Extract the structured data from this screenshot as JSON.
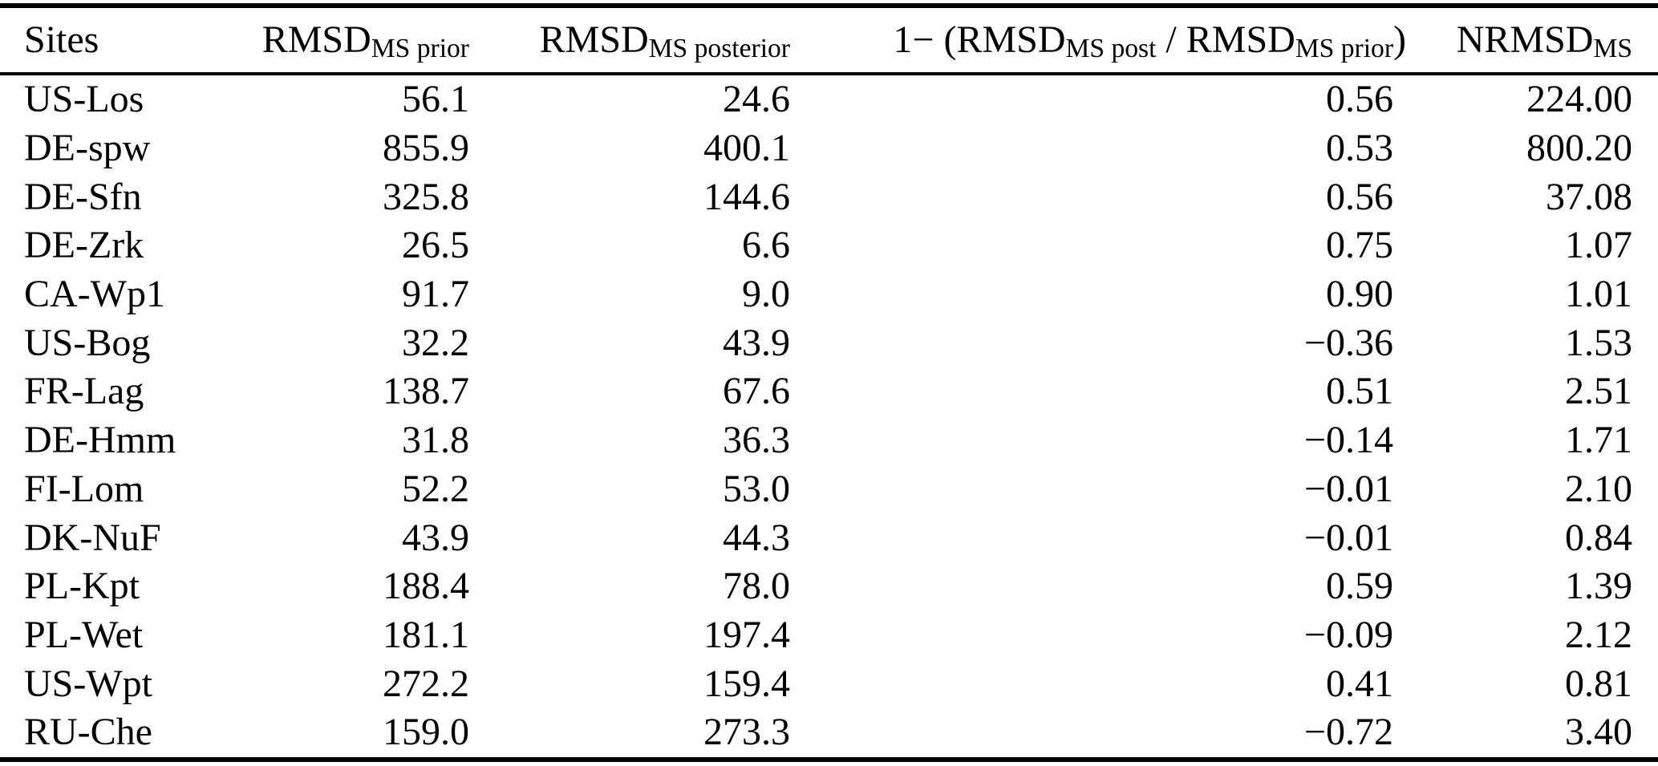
{
  "table": {
    "background_color": "#ffffff",
    "text_color": "#000000",
    "columns": [
      {
        "id": "sites",
        "segments": [
          {
            "text": "Sites"
          }
        ]
      },
      {
        "id": "rmsd_prior",
        "segments": [
          {
            "text": "RMSD"
          },
          {
            "sub": "MS prior"
          }
        ]
      },
      {
        "id": "rmsd_posterior",
        "segments": [
          {
            "text": "RMSD"
          },
          {
            "sub": "MS posterior"
          }
        ]
      },
      {
        "id": "improvement",
        "segments": [
          {
            "text": "1− (RMSD"
          },
          {
            "sub": "MS post"
          },
          {
            "text": " / RMSD"
          },
          {
            "sub": "MS prior"
          },
          {
            "text": ")"
          }
        ]
      },
      {
        "id": "nrmsd",
        "segments": [
          {
            "text": "NRMSD"
          },
          {
            "sub": "MS"
          }
        ]
      }
    ],
    "rows": [
      {
        "site": "US-Los",
        "rmsd_prior": "56.1",
        "rmsd_posterior": "24.6",
        "improvement": "0.56",
        "nrmsd": "224.00"
      },
      {
        "site": "DE-spw",
        "rmsd_prior": "855.9",
        "rmsd_posterior": "400.1",
        "improvement": "0.53",
        "nrmsd": "800.20"
      },
      {
        "site": "DE-Sfn",
        "rmsd_prior": "325.8",
        "rmsd_posterior": "144.6",
        "improvement": "0.56",
        "nrmsd": "37.08"
      },
      {
        "site": "DE-Zrk",
        "rmsd_prior": "26.5",
        "rmsd_posterior": "6.6",
        "improvement": "0.75",
        "nrmsd": "1.07"
      },
      {
        "site": "CA-Wp1",
        "rmsd_prior": "91.7",
        "rmsd_posterior": "9.0",
        "improvement": "0.90",
        "nrmsd": "1.01"
      },
      {
        "site": "US-Bog",
        "rmsd_prior": "32.2",
        "rmsd_posterior": "43.9",
        "improvement": "−0.36",
        "nrmsd": "1.53"
      },
      {
        "site": "FR-Lag",
        "rmsd_prior": "138.7",
        "rmsd_posterior": "67.6",
        "improvement": "0.51",
        "nrmsd": "2.51"
      },
      {
        "site": "DE-Hmm",
        "rmsd_prior": "31.8",
        "rmsd_posterior": "36.3",
        "improvement": "−0.14",
        "nrmsd": "1.71"
      },
      {
        "site": "FI-Lom",
        "rmsd_prior": "52.2",
        "rmsd_posterior": "53.0",
        "improvement": "−0.01",
        "nrmsd": "2.10"
      },
      {
        "site": "DK-NuF",
        "rmsd_prior": "43.9",
        "rmsd_posterior": "44.3",
        "improvement": "−0.01",
        "nrmsd": "0.84"
      },
      {
        "site": "PL-Kpt",
        "rmsd_prior": "188.4",
        "rmsd_posterior": "78.0",
        "improvement": "0.59",
        "nrmsd": "1.39"
      },
      {
        "site": "PL-Wet",
        "rmsd_prior": "181.1",
        "rmsd_posterior": "197.4",
        "improvement": "−0.09",
        "nrmsd": "2.12"
      },
      {
        "site": "US-Wpt",
        "rmsd_prior": "272.2",
        "rmsd_posterior": "159.4",
        "improvement": "0.41",
        "nrmsd": "0.81"
      },
      {
        "site": "RU-Che",
        "rmsd_prior": "159.0",
        "rmsd_posterior": "273.3",
        "improvement": "−0.72",
        "nrmsd": "3.40"
      }
    ]
  }
}
